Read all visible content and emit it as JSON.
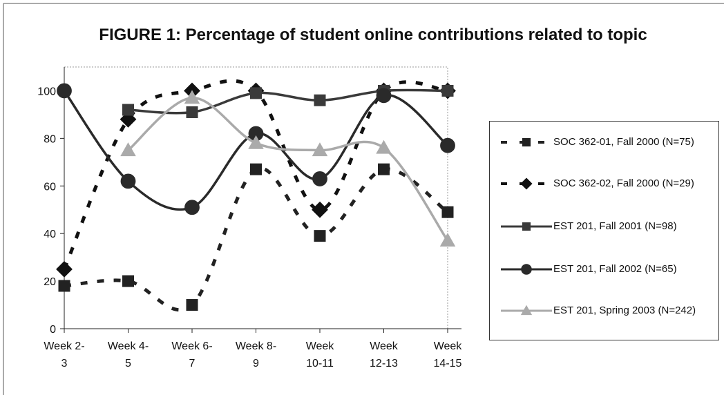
{
  "chart_data": {
    "type": "line",
    "title": "FIGURE 1: Percentage of student online contributions related to topic",
    "categories": [
      "Week 2- 3",
      "Week 4- 5",
      "Week 6- 7",
      "Week 8- 9",
      "Week 10-11",
      "Week 12-13",
      "Week 14-15"
    ],
    "series": [
      {
        "name": "SOC 362-01, Fall 2000 (N=75)",
        "color": "#222222",
        "line_style": "dashed",
        "marker": "square",
        "values": [
          18,
          20,
          10,
          67,
          39,
          67,
          49
        ]
      },
      {
        "name": "SOC 362-02, Fall 2000 (N=29)",
        "color": "#111111",
        "line_style": "dashed",
        "marker": "diamond",
        "values": [
          25,
          88,
          100,
          100,
          50,
          100,
          100
        ]
      },
      {
        "name": "EST 201, Fall 2001 (N=98)",
        "color": "#3a3a3a",
        "line_style": "solid",
        "marker": "square",
        "values": [
          null,
          92,
          91,
          99,
          96,
          100,
          100
        ]
      },
      {
        "name": "EST 201, Fall 2002 (N=65)",
        "color": "#2a2a2a",
        "line_style": "solid",
        "marker": "circle",
        "values": [
          100,
          62,
          51,
          82,
          63,
          98,
          77
        ]
      },
      {
        "name": "EST 201, Spring 2003 (N=242)",
        "color": "#aaaaaa",
        "line_style": "solid",
        "marker": "triangle",
        "values": [
          null,
          75,
          97,
          78,
          75,
          76,
          37
        ]
      }
    ],
    "ylim": [
      0,
      110
    ],
    "yticks": [
      0,
      20,
      40,
      60,
      80,
      100
    ],
    "smooth": true,
    "legend": "right"
  }
}
